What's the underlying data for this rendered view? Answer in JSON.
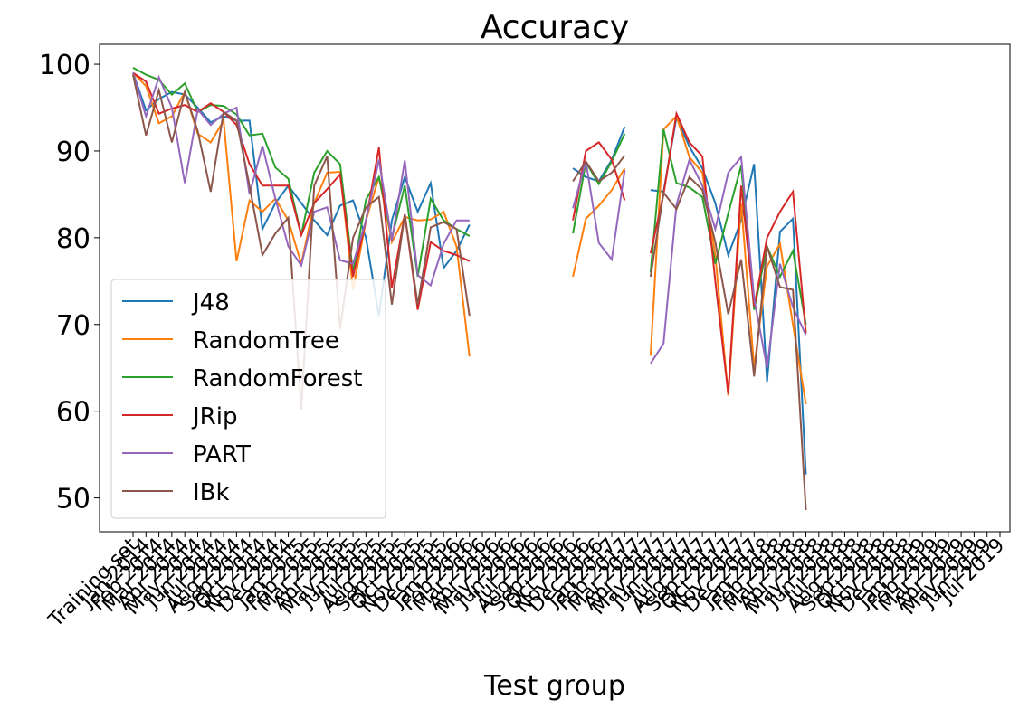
{
  "chart_data": {
    "type": "line",
    "title": "Accuracy",
    "x_label": "Test group",
    "categories": [
      "Training set",
      "Jan 2014",
      "Feb 2014",
      "Mar 2014",
      "Apr 2014",
      "May 2014",
      "Jun 2014",
      "Jul 2014",
      "Aug 2014",
      "Sep 2014",
      "Oct 2014",
      "Nov 2014",
      "Dec 2014",
      "Jan 2015",
      "Feb 2015",
      "Mar 2015",
      "Apr 2015",
      "May 2015",
      "Jun 2015",
      "Jul 2015",
      "Aug 2015",
      "Sep 2015",
      "Oct 2015",
      "Nov 2015",
      "Dec 2015",
      "Jan 2016",
      "Feb 2016",
      "Mar 2016",
      "Apr 2016",
      "May 2016",
      "Jun 2016",
      "Jul 2016",
      "Aug 2016",
      "Sep 2016",
      "Oct 2016",
      "Nov 2016",
      "Dec 2016",
      "Jan 2017",
      "Feb 2017",
      "Mar 2017",
      "Apr 2017",
      "May 2017",
      "Jun 2017",
      "Jul 2017",
      "Aug 2017",
      "Sep 2017",
      "Oct 2017",
      "Nov 2017",
      "Dec 2017",
      "Jan 2018",
      "Feb 2018",
      "Mar 2018",
      "Apr 2018",
      "May 2018",
      "Jun 2018",
      "Jul 2018",
      "Aug 2018",
      "Sep 2018",
      "Oct 2018",
      "Nov 2018",
      "Dec 2018",
      "Jan 2019",
      "Feb 2019",
      "Mar 2019",
      "Apr 2019",
      "May 2019",
      "Jun 2019",
      "Jul 2019"
    ],
    "series": [
      {
        "name": "J48",
        "color": "#1f77b4",
        "values": [
          99,
          94.7,
          96,
          96.8,
          96.5,
          95,
          93.3,
          94,
          93.5,
          93.5,
          81,
          84,
          86,
          84,
          82,
          80.3,
          83.7,
          84.3,
          80,
          71,
          82,
          87,
          83,
          86.3,
          76.5,
          78.5,
          81.5,
          null,
          null,
          null,
          null,
          null,
          null,
          null,
          88,
          87,
          86.5,
          89,
          92.8,
          null,
          85.5,
          85.3,
          93.9,
          90.5,
          88,
          84,
          78,
          82,
          88.5,
          63.4,
          80.7,
          82.2,
          52.7,
          null,
          null,
          null,
          null,
          null,
          null,
          null,
          null,
          null,
          null,
          null,
          null,
          null,
          null,
          null
        ]
      },
      {
        "name": "RandomTree",
        "color": "#ff7f0e",
        "values": [
          99,
          97.5,
          93.2,
          94,
          96.8,
          92,
          91,
          93.5,
          77.3,
          84.3,
          83,
          84.5,
          82,
          77,
          84,
          87.5,
          87.6,
          74,
          82,
          87,
          79.5,
          82.4,
          82,
          82.1,
          83,
          79,
          66.3,
          null,
          null,
          null,
          null,
          null,
          null,
          null,
          75.5,
          82.2,
          83.7,
          85.5,
          88,
          null,
          66.4,
          92.5,
          94,
          89.3,
          87.5,
          78,
          61.8,
          84,
          65,
          76.7,
          79.3,
          70,
          60.8,
          null,
          null,
          null,
          null,
          null,
          null,
          null,
          null,
          null,
          null,
          null,
          null,
          null,
          null,
          null
        ]
      },
      {
        "name": "RandomForest",
        "color": "#2ca02c",
        "values": [
          99.6,
          98.8,
          98.2,
          96.5,
          97.8,
          94.5,
          95.3,
          95.2,
          94.2,
          91.8,
          92,
          88.1,
          86.8,
          80.3,
          87.5,
          90,
          88.5,
          76,
          84.4,
          87,
          80,
          86,
          75.5,
          84.5,
          82,
          81,
          80.2,
          null,
          null,
          null,
          null,
          null,
          null,
          null,
          80.5,
          88.7,
          86.2,
          88.8,
          92,
          null,
          76,
          92.5,
          86.3,
          85.8,
          84.7,
          77,
          82.8,
          88.3,
          71.7,
          79,
          75.5,
          78.5,
          70,
          null,
          null,
          null,
          null,
          null,
          null,
          null,
          null,
          null,
          null,
          null,
          null,
          null,
          null,
          null
        ]
      },
      {
        "name": "JRip",
        "color": "#d62728",
        "values": [
          99,
          98,
          94.3,
          94.9,
          95.3,
          94.5,
          95.5,
          94.5,
          93,
          88.5,
          86,
          86,
          86,
          80.3,
          84,
          85.6,
          87.3,
          75.5,
          82,
          90.4,
          74.2,
          82.7,
          71.7,
          79.5,
          78.5,
          78,
          77.3,
          null,
          null,
          null,
          null,
          null,
          null,
          null,
          82,
          90,
          91,
          89,
          84.3,
          null,
          78.2,
          85,
          94.3,
          91,
          89.4,
          75,
          62,
          86,
          72,
          80,
          83,
          85.3,
          69,
          null,
          null,
          null,
          null,
          null,
          null,
          null,
          null,
          null,
          null,
          null,
          null,
          null,
          null,
          null
        ]
      },
      {
        "name": "PART",
        "color": "#9467bd",
        "values": [
          99,
          94,
          98.5,
          95,
          86.3,
          94.8,
          93,
          94.3,
          95,
          85,
          90.6,
          84.5,
          79,
          76.8,
          83,
          83.5,
          77.4,
          77,
          82,
          89,
          79.7,
          88.9,
          75.7,
          74.5,
          79.3,
          82,
          82,
          null,
          null,
          null,
          null,
          null,
          null,
          null,
          83.4,
          88.8,
          79.4,
          77.5,
          87.8,
          null,
          65.5,
          67.8,
          83.8,
          89,
          86,
          81,
          87.5,
          89.3,
          73,
          65,
          77,
          72,
          68.8,
          null,
          null,
          null,
          null,
          null,
          null,
          null,
          null,
          null,
          null,
          null,
          null,
          null,
          null,
          null
        ]
      },
      {
        "name": "IBk",
        "color": "#8c564b",
        "values": [
          98.8,
          91.8,
          97,
          91,
          96.8,
          92.3,
          85.3,
          94.5,
          93.5,
          86,
          78,
          80.5,
          82.3,
          60.2,
          86,
          89.4,
          69.5,
          80,
          83.5,
          84.7,
          72.3,
          82.7,
          72.3,
          81.2,
          81.8,
          81,
          71,
          null,
          null,
          null,
          null,
          null,
          null,
          null,
          86.5,
          88.8,
          86.5,
          87.5,
          89.5,
          null,
          75.5,
          85.2,
          83.3,
          87,
          85.5,
          79.5,
          71.2,
          77.5,
          64,
          79,
          74.3,
          74,
          48.6,
          null,
          null,
          null,
          null,
          null,
          null,
          null,
          null,
          null,
          null,
          null,
          null,
          null,
          null,
          null
        ]
      }
    ],
    "ylim": [
      46.1,
      102.3
    ],
    "yticks": [
      50,
      60,
      70,
      80,
      90,
      100
    ],
    "legend": "lower left"
  }
}
